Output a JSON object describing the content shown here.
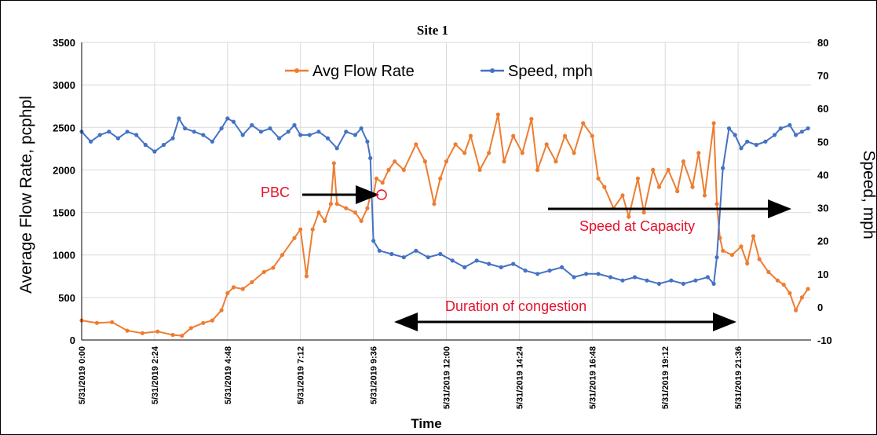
{
  "chart_data": {
    "type": "line",
    "title": "Site 1",
    "xlabel": "Time",
    "ylabel_left": "Average Flow Rate, pcphpl",
    "ylabel_right": "Speed, mph",
    "x_ticks": [
      "5/31/2019 0:00",
      "5/31/2019 2:24",
      "5/31/2019 4:48",
      "5/31/2019 7:12",
      "5/31/2019 9:36",
      "5/31/2019 12:00",
      "5/31/2019 14:24",
      "5/31/2019 16:48",
      "5/31/2019 19:12",
      "5/31/2019 21:36"
    ],
    "y_left_ticks": [
      "0",
      "500",
      "1000",
      "1500",
      "2000",
      "2500",
      "3000",
      "3500"
    ],
    "y_right_ticks": [
      "-10",
      "0",
      "10",
      "20",
      "30",
      "40",
      "50",
      "60",
      "70",
      "80"
    ],
    "ylim_left": [
      0,
      3500
    ],
    "ylim_right": [
      -10,
      80
    ],
    "x_hours_range": [
      0,
      24
    ],
    "grid": true,
    "legend_position": "top-center",
    "series": [
      {
        "name": "Avg Flow Rate",
        "axis": "left",
        "color": "#ED7D31",
        "points": [
          [
            0,
            230
          ],
          [
            0.5,
            200
          ],
          [
            1,
            210
          ],
          [
            1.5,
            110
          ],
          [
            2,
            80
          ],
          [
            2.5,
            100
          ],
          [
            3,
            60
          ],
          [
            3.3,
            50
          ],
          [
            3.6,
            140
          ],
          [
            4,
            200
          ],
          [
            4.3,
            230
          ],
          [
            4.6,
            350
          ],
          [
            4.8,
            550
          ],
          [
            5,
            620
          ],
          [
            5.3,
            600
          ],
          [
            5.6,
            680
          ],
          [
            6,
            800
          ],
          [
            6.3,
            850
          ],
          [
            6.6,
            1000
          ],
          [
            7,
            1200
          ],
          [
            7.2,
            1300
          ],
          [
            7.4,
            750
          ],
          [
            7.6,
            1300
          ],
          [
            7.8,
            1500
          ],
          [
            8,
            1400
          ],
          [
            8.2,
            1600
          ],
          [
            8.3,
            2080
          ],
          [
            8.4,
            1600
          ],
          [
            8.7,
            1550
          ],
          [
            9,
            1500
          ],
          [
            9.2,
            1400
          ],
          [
            9.4,
            1550
          ],
          [
            9.5,
            1700
          ],
          [
            9.6,
            1700
          ],
          [
            9.7,
            1900
          ],
          [
            9.9,
            1850
          ],
          [
            10.1,
            2000
          ],
          [
            10.3,
            2100
          ],
          [
            10.6,
            2000
          ],
          [
            11,
            2300
          ],
          [
            11.3,
            2100
          ],
          [
            11.6,
            1600
          ],
          [
            11.8,
            1900
          ],
          [
            12,
            2100
          ],
          [
            12.3,
            2300
          ],
          [
            12.6,
            2200
          ],
          [
            12.8,
            2400
          ],
          [
            13.1,
            2000
          ],
          [
            13.4,
            2200
          ],
          [
            13.7,
            2650
          ],
          [
            13.9,
            2100
          ],
          [
            14.2,
            2400
          ],
          [
            14.5,
            2200
          ],
          [
            14.8,
            2600
          ],
          [
            15,
            2000
          ],
          [
            15.3,
            2300
          ],
          [
            15.6,
            2100
          ],
          [
            15.9,
            2400
          ],
          [
            16.2,
            2200
          ],
          [
            16.5,
            2550
          ],
          [
            16.8,
            2400
          ],
          [
            17,
            1900
          ],
          [
            17.2,
            1800
          ],
          [
            17.5,
            1550
          ],
          [
            17.8,
            1700
          ],
          [
            18,
            1450
          ],
          [
            18.3,
            1900
          ],
          [
            18.5,
            1500
          ],
          [
            18.8,
            2000
          ],
          [
            19,
            1800
          ],
          [
            19.3,
            2000
          ],
          [
            19.6,
            1750
          ],
          [
            19.8,
            2100
          ],
          [
            20.1,
            1800
          ],
          [
            20.3,
            2200
          ],
          [
            20.5,
            1700
          ],
          [
            20.8,
            2550
          ],
          [
            20.9,
            1600
          ],
          [
            21,
            1200
          ],
          [
            21.1,
            1050
          ],
          [
            21.4,
            1000
          ],
          [
            21.7,
            1100
          ],
          [
            21.9,
            900
          ],
          [
            22.1,
            1220
          ],
          [
            22.3,
            950
          ],
          [
            22.6,
            800
          ],
          [
            22.9,
            700
          ],
          [
            23.1,
            650
          ],
          [
            23.3,
            550
          ],
          [
            23.5,
            350
          ],
          [
            23.7,
            500
          ],
          [
            23.9,
            600
          ]
        ]
      },
      {
        "name": "Speed, mph",
        "axis": "right",
        "color": "#4472C4",
        "points": [
          [
            0,
            53
          ],
          [
            0.3,
            50
          ],
          [
            0.6,
            52
          ],
          [
            0.9,
            53
          ],
          [
            1.2,
            51
          ],
          [
            1.5,
            53
          ],
          [
            1.8,
            52
          ],
          [
            2.1,
            49
          ],
          [
            2.4,
            47
          ],
          [
            2.7,
            49
          ],
          [
            3,
            51
          ],
          [
            3.2,
            57
          ],
          [
            3.4,
            54
          ],
          [
            3.7,
            53
          ],
          [
            4,
            52
          ],
          [
            4.3,
            50
          ],
          [
            4.6,
            54
          ],
          [
            4.8,
            57
          ],
          [
            5,
            56
          ],
          [
            5.3,
            52
          ],
          [
            5.6,
            55
          ],
          [
            5.9,
            53
          ],
          [
            6.2,
            54
          ],
          [
            6.5,
            51
          ],
          [
            6.8,
            53
          ],
          [
            7,
            55
          ],
          [
            7.2,
            52
          ],
          [
            7.5,
            52
          ],
          [
            7.8,
            53
          ],
          [
            8.1,
            51
          ],
          [
            8.4,
            48
          ],
          [
            8.7,
            53
          ],
          [
            9,
            52
          ],
          [
            9.2,
            54
          ],
          [
            9.4,
            50
          ],
          [
            9.5,
            45
          ],
          [
            9.6,
            20
          ],
          [
            9.8,
            17
          ],
          [
            10.2,
            16
          ],
          [
            10.6,
            15
          ],
          [
            11,
            17
          ],
          [
            11.4,
            15
          ],
          [
            11.8,
            16
          ],
          [
            12.2,
            14
          ],
          [
            12.6,
            12
          ],
          [
            13,
            14
          ],
          [
            13.4,
            13
          ],
          [
            13.8,
            12
          ],
          [
            14.2,
            13
          ],
          [
            14.6,
            11
          ],
          [
            15,
            10
          ],
          [
            15.4,
            11
          ],
          [
            15.8,
            12
          ],
          [
            16.2,
            9
          ],
          [
            16.6,
            10
          ],
          [
            17,
            10
          ],
          [
            17.4,
            9
          ],
          [
            17.8,
            8
          ],
          [
            18.2,
            9
          ],
          [
            18.6,
            8
          ],
          [
            19,
            7
          ],
          [
            19.4,
            8
          ],
          [
            19.8,
            7
          ],
          [
            20.2,
            8
          ],
          [
            20.6,
            9
          ],
          [
            20.8,
            7
          ],
          [
            20.9,
            15
          ],
          [
            21.1,
            42
          ],
          [
            21.3,
            54
          ],
          [
            21.5,
            52
          ],
          [
            21.7,
            48
          ],
          [
            21.9,
            50
          ],
          [
            22.2,
            49
          ],
          [
            22.5,
            50
          ],
          [
            22.8,
            52
          ],
          [
            23,
            54
          ],
          [
            23.3,
            55
          ],
          [
            23.5,
            52
          ],
          [
            23.7,
            53
          ],
          [
            23.9,
            54
          ]
        ]
      }
    ]
  },
  "annotations": {
    "pbc": "PBC",
    "speed_at_capacity": "Speed at Capacity",
    "duration": "Duration of congestion"
  },
  "colors": {
    "flow": "#ED7D31",
    "speed": "#4472C4",
    "annotation": "#E8102B",
    "arrow": "#000000"
  }
}
